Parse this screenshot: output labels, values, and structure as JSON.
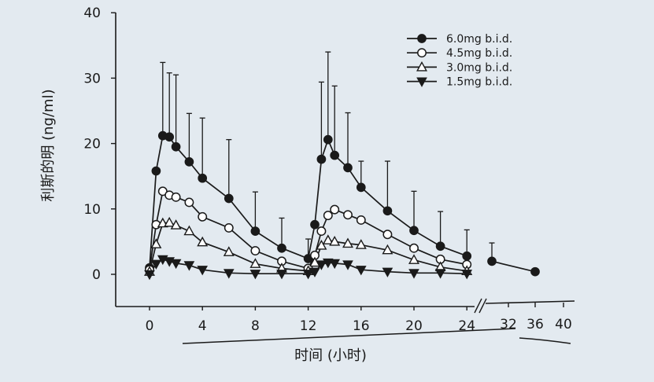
{
  "chart_data": {
    "type": "line",
    "title": "",
    "xlabel": "时间 (小时)",
    "ylabel": "利斯的明 (ng/ml)",
    "ylim": [
      0,
      40
    ],
    "y_ticks": [
      "0",
      "10",
      "20",
      "30",
      "40"
    ],
    "x_ticks_main": [
      "0",
      "4",
      "8",
      "12",
      "16",
      "20",
      "24"
    ],
    "x_ticks_after_break": [
      "32",
      "36",
      "40"
    ],
    "axis_break_after": 24,
    "grid": false,
    "legend_placement": "top-right",
    "series": [
      {
        "name": "6.0mg b.i.d.",
        "marker": "filled-circle",
        "x": [
          0,
          0.5,
          1,
          1.5,
          2,
          3,
          4,
          6,
          8,
          10,
          12,
          12.5,
          13,
          13.5,
          14,
          15,
          16,
          18,
          20,
          22,
          24,
          26,
          36
        ],
        "y": [
          1.0,
          15.8,
          21.2,
          21.0,
          19.5,
          17.2,
          14.7,
          11.6,
          6.6,
          4.0,
          2.4,
          7.6,
          17.6,
          20.6,
          18.2,
          16.3,
          13.3,
          9.7,
          6.7,
          4.3,
          2.8,
          2.0,
          0.4
        ],
        "error_upper": [
          null,
          null,
          11.2,
          9.8,
          11.0,
          7.4,
          9.2,
          9.0,
          6.0,
          4.6,
          3.0,
          null,
          11.8,
          13.4,
          10.6,
          8.4,
          4.0,
          7.6,
          6.0,
          5.3,
          4.0,
          2.8,
          null
        ]
      },
      {
        "name": "4.5mg b.i.d.",
        "marker": "open-circle",
        "x": [
          0,
          0.5,
          1,
          1.5,
          2,
          3,
          4,
          6,
          8,
          10,
          12,
          12.5,
          13,
          13.5,
          14,
          15,
          16,
          18,
          20,
          22,
          24
        ],
        "y": [
          0.7,
          7.6,
          12.7,
          12.1,
          11.8,
          11.0,
          8.8,
          7.1,
          3.6,
          2.0,
          0.9,
          2.9,
          6.6,
          9.0,
          9.9,
          9.1,
          8.3,
          6.1,
          4.0,
          2.3,
          1.5
        ],
        "error_upper": [
          null,
          null,
          null,
          null,
          null,
          null,
          null,
          null,
          null,
          null,
          null,
          null,
          null,
          null,
          null,
          null,
          null,
          null,
          null,
          null,
          null
        ]
      },
      {
        "name": "3.0mg b.i.d.",
        "marker": "open-triangle",
        "x": [
          0,
          0.5,
          1,
          1.5,
          2,
          3,
          4,
          6,
          8,
          10,
          12,
          12.5,
          13,
          13.5,
          14,
          15,
          16,
          18,
          20,
          22,
          24
        ],
        "y": [
          0.4,
          4.6,
          7.8,
          7.9,
          7.5,
          6.6,
          4.9,
          3.4,
          1.6,
          0.9,
          0.5,
          1.8,
          4.4,
          5.2,
          5.0,
          4.7,
          4.5,
          3.7,
          2.2,
          1.1,
          0.5
        ],
        "error_upper": [
          null,
          null,
          null,
          null,
          null,
          null,
          null,
          null,
          null,
          null,
          null,
          null,
          null,
          null,
          null,
          null,
          null,
          null,
          null,
          null,
          null
        ]
      },
      {
        "name": "1.5mg b.i.d.",
        "marker": "filled-triangle-down",
        "x": [
          0,
          0.5,
          1,
          1.5,
          2,
          3,
          4,
          6,
          8,
          10,
          12,
          12.5,
          13,
          13.5,
          14,
          15,
          16,
          18,
          20,
          22,
          24
        ],
        "y": [
          0.0,
          1.6,
          2.3,
          2.0,
          1.7,
          1.4,
          0.7,
          0.2,
          0.1,
          0.1,
          0.1,
          0.4,
          1.5,
          1.8,
          1.7,
          1.5,
          0.7,
          0.4,
          0.2,
          0.2,
          0.1
        ],
        "error_upper": [
          null,
          null,
          null,
          null,
          null,
          null,
          null,
          null,
          null,
          null,
          null,
          null,
          null,
          null,
          null,
          null,
          null,
          null,
          null,
          null,
          null
        ]
      }
    ]
  }
}
